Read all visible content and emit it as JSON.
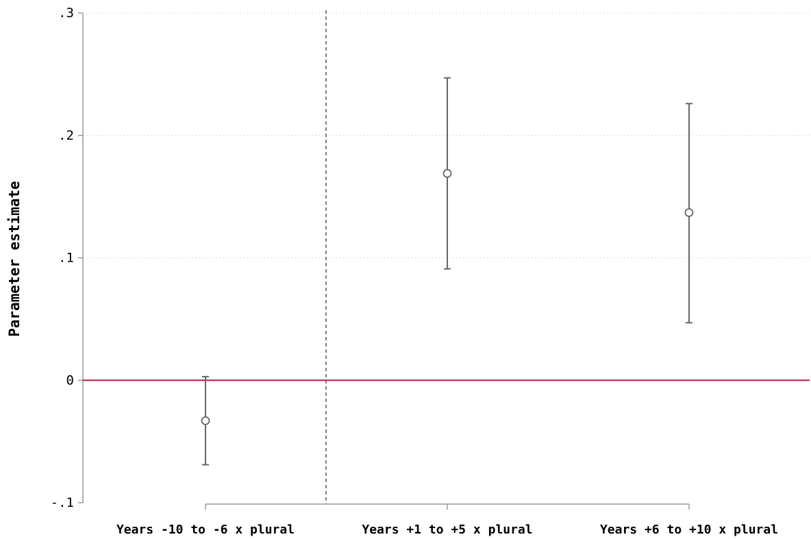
{
  "chart_data": {
    "type": "scatter",
    "ylabel": "Parameter estimate",
    "xlabel": "",
    "ylim": [
      -0.1,
      0.3
    ],
    "yticks": [
      {
        "value": -0.1,
        "label": "-.1"
      },
      {
        "value": 0,
        "label": "0"
      },
      {
        "value": 0.1,
        "label": ".1"
      },
      {
        "value": 0.2,
        "label": ".2"
      },
      {
        "value": 0.3,
        "label": ".3"
      }
    ],
    "categories": [
      "Years -10 to -6 x plural",
      "Years +1 to +5 x plural",
      "Years +6 to +10 x plural"
    ],
    "values": [
      -0.033,
      0.169,
      0.137
    ],
    "ci_low": [
      -0.069,
      0.091,
      0.047
    ],
    "ci_high": [
      0.003,
      0.247,
      0.226
    ],
    "reference_line": 0,
    "grid": "horizontal dotted",
    "colors": {
      "marker": "#666666",
      "reference_line": "#c0143c",
      "grid": "#bbbbbb",
      "axis": "#999999"
    }
  }
}
